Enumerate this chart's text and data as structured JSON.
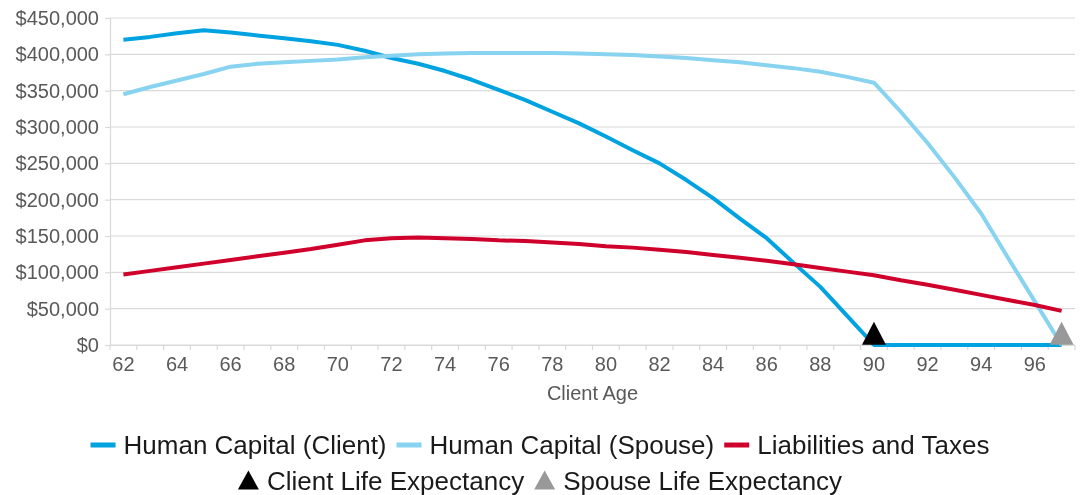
{
  "chart_data": {
    "type": "line",
    "xlabel": "Client Age",
    "categories": [
      "62",
      null,
      "64",
      null,
      "66",
      null,
      "68",
      null,
      "70",
      null,
      "72",
      null,
      "74",
      null,
      "76",
      null,
      "78",
      null,
      "80",
      null,
      "82",
      null,
      "84",
      null,
      "86",
      null,
      "88",
      null,
      "90",
      null,
      "92",
      null,
      "94",
      null,
      "96",
      null
    ],
    "ylim": [
      0,
      450000
    ],
    "yticks": [
      {
        "value": 0,
        "label": "$0"
      },
      {
        "value": 50000,
        "label": "$50,000"
      },
      {
        "value": 100000,
        "label": "$100,000"
      },
      {
        "value": 150000,
        "label": "$150,000"
      },
      {
        "value": 200000,
        "label": "$200,000"
      },
      {
        "value": 250000,
        "label": "$250,000"
      },
      {
        "value": 300000,
        "label": "$300,000"
      },
      {
        "value": 350000,
        "label": "$350,000"
      },
      {
        "value": 400000,
        "label": "$400,000"
      },
      {
        "value": 450000,
        "label": "$450,000"
      }
    ],
    "grid": "y",
    "legend": "bottom",
    "line_style": "solid",
    "series": [
      {
        "name": "Human Capital (Client)",
        "color": "#00a3e0",
        "values": [
          420000,
          424000,
          429000,
          433000,
          430000,
          426000,
          422000,
          418000,
          413000,
          405000,
          395000,
          387000,
          377000,
          365000,
          351000,
          337000,
          321000,
          305000,
          287000,
          268000,
          250000,
          227000,
          202000,
          174000,
          147000,
          113000,
          80000,
          40000,
          0,
          0,
          0,
          0,
          0,
          0,
          0,
          0
        ]
      },
      {
        "name": "Human Capital (Spouse)",
        "color": "#87d3f0",
        "values": [
          345000,
          355000,
          364000,
          373000,
          383000,
          387000,
          389000,
          391000,
          393000,
          396000,
          398000,
          400000,
          401000,
          402000,
          402000,
          402000,
          402000,
          401000,
          400000,
          399000,
          397000,
          395000,
          392000,
          389000,
          385000,
          381000,
          376000,
          369000,
          361000,
          321000,
          278000,
          231000,
          181000,
          120000,
          60000,
          0
        ]
      },
      {
        "name": "Liabilities and Taxes",
        "color": "#d0002c",
        "values": [
          97000,
          102000,
          107000,
          112000,
          117000,
          122000,
          127000,
          132000,
          138000,
          144000,
          147000,
          148000,
          147000,
          146000,
          144000,
          143000,
          141000,
          139000,
          136000,
          134000,
          131000,
          128000,
          124000,
          120000,
          116000,
          111000,
          106000,
          101000,
          96000,
          89000,
          83000,
          76000,
          69000,
          62000,
          55000,
          47000
        ]
      },
      {
        "name": "Client Life Expectancy",
        "type": "scatter",
        "marker": "triangle",
        "color": "#000000",
        "values": [
          null,
          null,
          null,
          null,
          null,
          null,
          null,
          null,
          null,
          null,
          null,
          null,
          null,
          null,
          null,
          null,
          null,
          null,
          null,
          null,
          null,
          null,
          null,
          null,
          null,
          null,
          null,
          null,
          16000,
          null,
          null,
          null,
          null,
          null,
          null,
          null
        ]
      },
      {
        "name": "Spouse Life Expectancy",
        "type": "scatter",
        "marker": "triangle",
        "color": "#999999",
        "values": [
          null,
          null,
          null,
          null,
          null,
          null,
          null,
          null,
          null,
          null,
          null,
          null,
          null,
          null,
          null,
          null,
          null,
          null,
          null,
          null,
          null,
          null,
          null,
          null,
          null,
          null,
          null,
          null,
          null,
          null,
          null,
          null,
          null,
          null,
          null,
          16000
        ]
      }
    ]
  }
}
